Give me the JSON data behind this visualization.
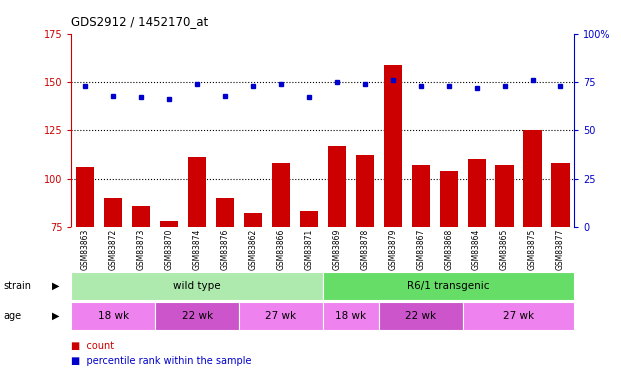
{
  "title": "GDS2912 / 1452170_at",
  "samples": [
    "GSM83863",
    "GSM83872",
    "GSM83873",
    "GSM83870",
    "GSM83874",
    "GSM83876",
    "GSM83862",
    "GSM83866",
    "GSM83871",
    "GSM83869",
    "GSM83878",
    "GSM83879",
    "GSM83867",
    "GSM83868",
    "GSM83864",
    "GSM83865",
    "GSM83875",
    "GSM83877"
  ],
  "counts": [
    106,
    90,
    86,
    78,
    111,
    90,
    82,
    108,
    83,
    117,
    112,
    159,
    107,
    104,
    110,
    107,
    125,
    108
  ],
  "percentile_ranks": [
    73,
    68,
    67,
    66,
    74,
    68,
    73,
    74,
    67,
    75,
    74,
    76,
    73,
    73,
    72,
    73,
    76,
    73
  ],
  "bar_color": "#cc0000",
  "dot_color": "#0000cc",
  "ylim_left": [
    75,
    175
  ],
  "ylim_right": [
    0,
    100
  ],
  "yticks_left": [
    75,
    100,
    125,
    150,
    175
  ],
  "yticks_right": [
    0,
    25,
    50,
    75,
    100
  ],
  "yticklabels_right": [
    "0",
    "25",
    "50",
    "75",
    "100%"
  ],
  "hlines": [
    100,
    125,
    150
  ],
  "strain_labels": [
    {
      "text": "wild type",
      "start": 0,
      "end": 9,
      "color": "#aeeaae"
    },
    {
      "text": "R6/1 transgenic",
      "start": 9,
      "end": 18,
      "color": "#66dd66"
    }
  ],
  "age_labels": [
    {
      "text": "18 wk",
      "start": 0,
      "end": 3,
      "color": "#ee82ee"
    },
    {
      "text": "22 wk",
      "start": 3,
      "end": 6,
      "color": "#cc55cc"
    },
    {
      "text": "27 wk",
      "start": 6,
      "end": 9,
      "color": "#ee82ee"
    },
    {
      "text": "18 wk",
      "start": 9,
      "end": 11,
      "color": "#ee82ee"
    },
    {
      "text": "22 wk",
      "start": 11,
      "end": 14,
      "color": "#cc55cc"
    },
    {
      "text": "27 wk",
      "start": 14,
      "end": 18,
      "color": "#ee82ee"
    }
  ],
  "xtick_bg_color": "#c8c8c8",
  "plot_bg_color": "#ffffff",
  "legend_count_color": "#cc0000",
  "legend_pct_color": "#0000cc",
  "left_axis_color": "#cc0000",
  "right_axis_color": "#0000cc"
}
